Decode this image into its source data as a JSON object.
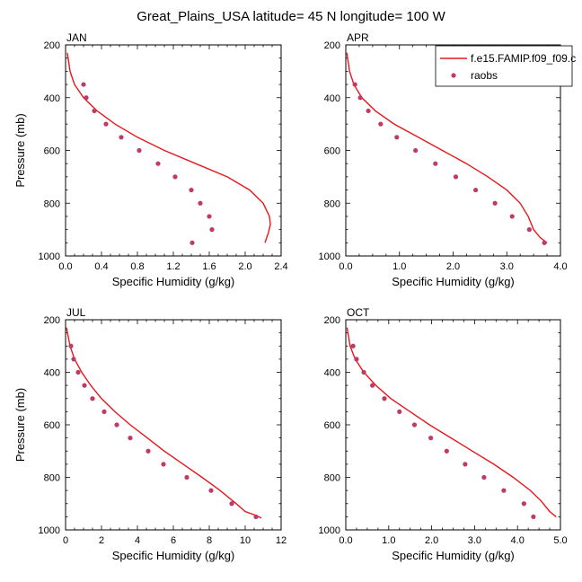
{
  "figure": {
    "title": "Great_Plains_USA  latitude= 45 N longitude= 100 W",
    "model_color": "#e8161b",
    "obs_color": "#c03a66"
  },
  "legend": {
    "model_label": "f.e15.FAMIP.f09_f09.c",
    "obs_label": "raobs"
  },
  "chart_data": [
    {
      "type": "line",
      "panel": "JAN",
      "xlabel": "Specific Humidity (g/kg)",
      "ylabel": "Pressure (mb)",
      "xlim": [
        0,
        2.4
      ],
      "ylim": [
        1000,
        200
      ],
      "xticks": [
        0,
        0.4,
        0.8,
        1.2,
        1.6,
        2.0,
        2.4
      ],
      "xtick_labels": [
        "0.0",
        "0.4",
        "0.8",
        "1.2",
        "1.6",
        "2.0",
        "2.4"
      ],
      "yticks": [
        200,
        400,
        600,
        800,
        1000
      ],
      "ytick_labels": [
        "200",
        "400",
        "600",
        "800",
        "1000"
      ],
      "series": [
        {
          "kind": "model",
          "values": [
            [
              0.02,
              230
            ],
            [
              0.05,
              300
            ],
            [
              0.1,
              350
            ],
            [
              0.2,
              400
            ],
            [
              0.35,
              450
            ],
            [
              0.55,
              500
            ],
            [
              0.8,
              550
            ],
            [
              1.1,
              600
            ],
            [
              1.45,
              650
            ],
            [
              1.8,
              700
            ],
            [
              2.05,
              750
            ],
            [
              2.2,
              800
            ],
            [
              2.27,
              850
            ],
            [
              2.28,
              880
            ],
            [
              2.26,
              910
            ],
            [
              2.24,
              930
            ],
            [
              2.22,
              950
            ]
          ]
        },
        {
          "kind": "obs",
          "values": [
            [
              0.2,
              350
            ],
            [
              0.23,
              400
            ],
            [
              0.32,
              450
            ],
            [
              0.45,
              500
            ],
            [
              0.62,
              550
            ],
            [
              0.82,
              600
            ],
            [
              1.03,
              650
            ],
            [
              1.22,
              700
            ],
            [
              1.4,
              750
            ],
            [
              1.5,
              800
            ],
            [
              1.6,
              850
            ],
            [
              1.63,
              900
            ],
            [
              1.41,
              950
            ]
          ]
        }
      ]
    },
    {
      "type": "line",
      "panel": "APR",
      "xlabel": "Specific Humidity (g/kg)",
      "ylabel": "",
      "xlim": [
        0,
        4.0
      ],
      "ylim": [
        1000,
        200
      ],
      "xticks": [
        0,
        1.0,
        2.0,
        3.0,
        4.0
      ],
      "xtick_labels": [
        "0.0",
        "1.0",
        "2.0",
        "3.0",
        "4.0"
      ],
      "yticks": [
        200,
        400,
        600,
        800,
        1000
      ],
      "ytick_labels": [
        "200",
        "400",
        "600",
        "800",
        "1000"
      ],
      "series": [
        {
          "kind": "model",
          "values": [
            [
              0.02,
              230
            ],
            [
              0.07,
              300
            ],
            [
              0.15,
              350
            ],
            [
              0.3,
              400
            ],
            [
              0.55,
              450
            ],
            [
              0.9,
              500
            ],
            [
              1.35,
              550
            ],
            [
              1.8,
              600
            ],
            [
              2.25,
              650
            ],
            [
              2.65,
              700
            ],
            [
              3.0,
              750
            ],
            [
              3.25,
              800
            ],
            [
              3.4,
              850
            ],
            [
              3.5,
              900
            ],
            [
              3.62,
              930
            ],
            [
              3.75,
              950
            ]
          ]
        },
        {
          "kind": "obs",
          "values": [
            [
              0.17,
              350
            ],
            [
              0.27,
              400
            ],
            [
              0.42,
              450
            ],
            [
              0.65,
              500
            ],
            [
              0.95,
              550
            ],
            [
              1.3,
              600
            ],
            [
              1.67,
              650
            ],
            [
              2.05,
              700
            ],
            [
              2.42,
              750
            ],
            [
              2.78,
              800
            ],
            [
              3.1,
              850
            ],
            [
              3.42,
              900
            ],
            [
              3.7,
              950
            ]
          ]
        }
      ]
    },
    {
      "type": "line",
      "panel": "JUL",
      "xlabel": "Specific Humidity (g/kg)",
      "ylabel": "Pressure (mb)",
      "xlim": [
        0,
        12
      ],
      "ylim": [
        1000,
        200
      ],
      "xticks": [
        0,
        2,
        4,
        6,
        8,
        10,
        12
      ],
      "xtick_labels": [
        "0",
        "2",
        "4",
        "6",
        "8",
        "10",
        "12"
      ],
      "yticks": [
        200,
        400,
        600,
        800,
        1000
      ],
      "ytick_labels": [
        "200",
        "400",
        "600",
        "800",
        "1000"
      ],
      "series": [
        {
          "kind": "model",
          "values": [
            [
              0.05,
              230
            ],
            [
              0.25,
              300
            ],
            [
              0.5,
              350
            ],
            [
              0.9,
              400
            ],
            [
              1.4,
              450
            ],
            [
              2.0,
              500
            ],
            [
              2.75,
              550
            ],
            [
              3.6,
              600
            ],
            [
              4.55,
              650
            ],
            [
              5.5,
              700
            ],
            [
              6.55,
              750
            ],
            [
              7.6,
              800
            ],
            [
              8.6,
              850
            ],
            [
              9.5,
              900
            ],
            [
              10.0,
              930
            ],
            [
              10.6,
              945
            ],
            [
              10.9,
              955
            ]
          ]
        },
        {
          "kind": "obs",
          "values": [
            [
              0.3,
              300
            ],
            [
              0.45,
              350
            ],
            [
              0.7,
              400
            ],
            [
              1.05,
              450
            ],
            [
              1.5,
              500
            ],
            [
              2.15,
              550
            ],
            [
              2.85,
              600
            ],
            [
              3.6,
              650
            ],
            [
              4.6,
              700
            ],
            [
              5.45,
              750
            ],
            [
              6.75,
              800
            ],
            [
              8.1,
              850
            ],
            [
              9.25,
              900
            ],
            [
              10.6,
              950
            ]
          ]
        }
      ]
    },
    {
      "type": "line",
      "panel": "OCT",
      "xlabel": "Specific Humidity (g/kg)",
      "ylabel": "",
      "xlim": [
        0,
        5.0
      ],
      "ylim": [
        1000,
        200
      ],
      "xticks": [
        0,
        1.0,
        2.0,
        3.0,
        4.0,
        5.0
      ],
      "xtick_labels": [
        "0.0",
        "1.0",
        "2.0",
        "3.0",
        "4.0",
        "5.0"
      ],
      "yticks": [
        200,
        400,
        600,
        800,
        1000
      ],
      "ytick_labels": [
        "200",
        "400",
        "600",
        "800",
        "1000"
      ],
      "series": [
        {
          "kind": "model",
          "values": [
            [
              0.03,
              230
            ],
            [
              0.1,
              300
            ],
            [
              0.22,
              350
            ],
            [
              0.42,
              400
            ],
            [
              0.7,
              450
            ],
            [
              1.05,
              500
            ],
            [
              1.5,
              550
            ],
            [
              1.95,
              600
            ],
            [
              2.45,
              650
            ],
            [
              2.95,
              700
            ],
            [
              3.45,
              750
            ],
            [
              3.9,
              800
            ],
            [
              4.3,
              850
            ],
            [
              4.55,
              890
            ],
            [
              4.75,
              930
            ],
            [
              4.9,
              950
            ]
          ]
        },
        {
          "kind": "obs",
          "values": [
            [
              0.17,
              300
            ],
            [
              0.25,
              350
            ],
            [
              0.42,
              400
            ],
            [
              0.62,
              450
            ],
            [
              0.9,
              500
            ],
            [
              1.25,
              550
            ],
            [
              1.6,
              600
            ],
            [
              1.98,
              650
            ],
            [
              2.35,
              700
            ],
            [
              2.78,
              750
            ],
            [
              3.22,
              800
            ],
            [
              3.68,
              850
            ],
            [
              4.15,
              900
            ],
            [
              4.37,
              950
            ]
          ]
        }
      ]
    }
  ]
}
